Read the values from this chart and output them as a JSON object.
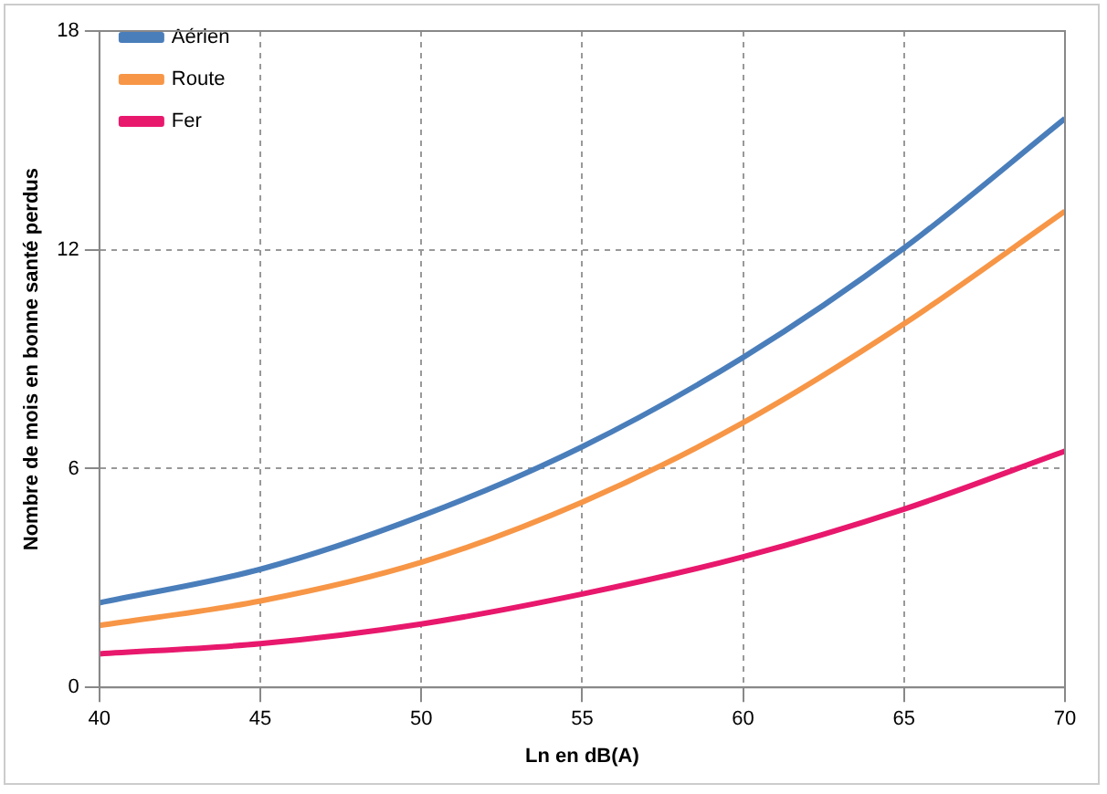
{
  "chart_data": {
    "type": "line",
    "xlabel": "Ln en dB(A)",
    "ylabel": "Nombre de mois en bonne santé perdus",
    "x": [
      40,
      45,
      50,
      55,
      60,
      65,
      70
    ],
    "series": [
      {
        "name": "Aérien",
        "color": "#4a7ebb",
        "values": [
          2.32,
          3.24,
          4.7,
          6.6,
          9.05,
          12.05,
          15.6
        ]
      },
      {
        "name": "Route",
        "color": "#f79646",
        "values": [
          1.7,
          2.37,
          3.43,
          5.08,
          7.26,
          9.97,
          13.06
        ]
      },
      {
        "name": "Fer",
        "color": "#e8186d",
        "values": [
          0.92,
          1.2,
          1.74,
          2.56,
          3.58,
          4.89,
          6.48
        ]
      }
    ],
    "xlim": [
      40,
      70
    ],
    "xticks": [
      40,
      45,
      50,
      55,
      60,
      65,
      70
    ],
    "ylim": [
      0,
      18
    ],
    "yticks": [
      0,
      6,
      12,
      18
    ],
    "grid": true,
    "legend": "top left",
    "marker": "none",
    "line_style": "solid"
  }
}
